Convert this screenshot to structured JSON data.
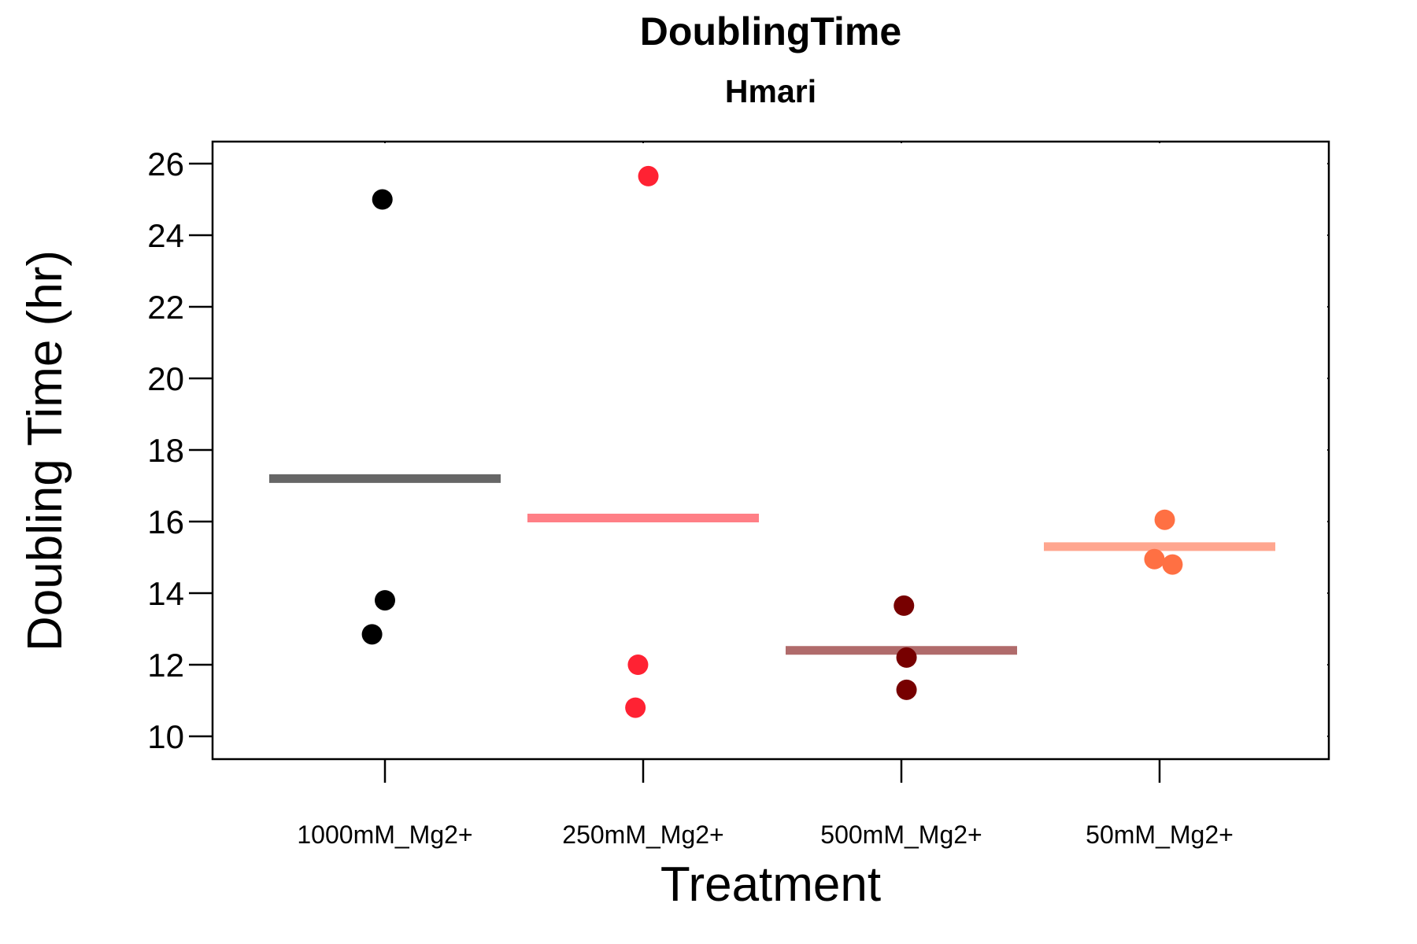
{
  "chart_data": {
    "type": "scatter",
    "title": "DoublingTime",
    "subtitle": "Hmari",
    "xlabel": "Treatment",
    "ylabel": "Doubling Time (hr)",
    "ylim": [
      9.4,
      26.6
    ],
    "yticks": [
      10,
      12,
      14,
      16,
      18,
      20,
      22,
      24,
      26
    ],
    "ytick_labels": [
      "10",
      "12",
      "14",
      "16",
      "18",
      "20",
      "22",
      "24",
      "26"
    ],
    "grid": false,
    "legend": "none",
    "categories": [
      "1000mM_Mg2+",
      "250mM_Mg2+",
      "500mM_Mg2+",
      "50mM_Mg2+"
    ],
    "groups": [
      {
        "category": "1000mM_Mg2+",
        "point_color": "#000000",
        "mean_color": "#666666",
        "mean": 17.2,
        "points": [
          {
            "jitter": -0.05,
            "y": 12.85
          },
          {
            "jitter": 0.0,
            "y": 13.8
          },
          {
            "jitter": -0.01,
            "y": 25.0
          }
        ]
      },
      {
        "category": "250mM_Mg2+",
        "point_color": "#FF2233",
        "mean_color": "#FF7F86",
        "mean": 16.1,
        "points": [
          {
            "jitter": -0.03,
            "y": 10.8
          },
          {
            "jitter": -0.02,
            "y": 12.0
          },
          {
            "jitter": 0.02,
            "y": 25.65
          }
        ]
      },
      {
        "category": "500mM_Mg2+",
        "point_color": "#770000",
        "mean_color": "#B06B6B",
        "mean": 12.4,
        "points": [
          {
            "jitter": 0.02,
            "y": 11.3
          },
          {
            "jitter": 0.02,
            "y": 12.2
          },
          {
            "jitter": 0.01,
            "y": 13.65
          }
        ]
      },
      {
        "category": "50mM_Mg2+",
        "point_color": "#FF7043",
        "mean_color": "#FFA68F",
        "mean": 15.3,
        "points": [
          {
            "jitter": 0.05,
            "y": 14.8
          },
          {
            "jitter": -0.02,
            "y": 14.95
          },
          {
            "jitter": 0.02,
            "y": 16.05
          }
        ]
      }
    ]
  }
}
